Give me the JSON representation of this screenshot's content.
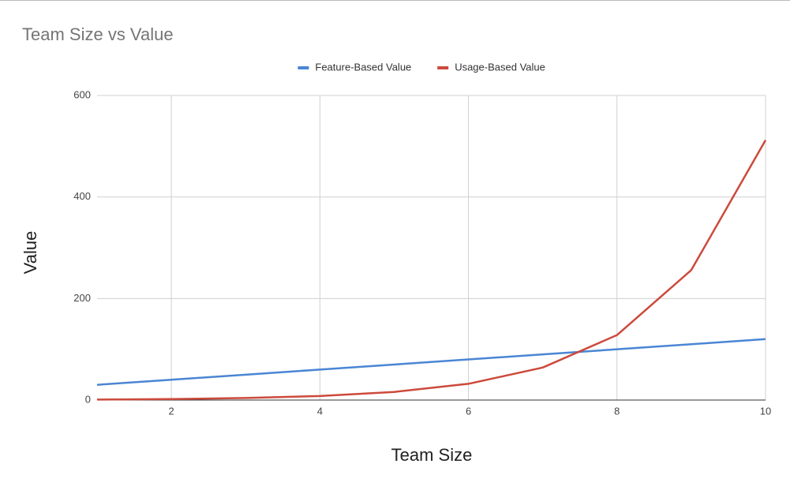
{
  "chart_data": {
    "type": "line",
    "title": "Team Size vs Value",
    "x_label": "Team Size",
    "y_label": "Value",
    "x": [
      1,
      2,
      3,
      4,
      5,
      6,
      7,
      8,
      9,
      10
    ],
    "series": [
      {
        "name": "Feature-Based Value",
        "color": "#4a86d4",
        "values": [
          30,
          40,
          50,
          60,
          70,
          80,
          90,
          100,
          110,
          120
        ]
      },
      {
        "name": "Usage-Based Value",
        "color": "#cc4a3c",
        "values": [
          1,
          2,
          4,
          8,
          16,
          32,
          64,
          128,
          256,
          512
        ]
      }
    ],
    "xlim": [
      1,
      10
    ],
    "xticks": [
      2,
      4,
      6,
      8,
      10
    ],
    "ylim": [
      0,
      600
    ],
    "yticks": [
      0,
      200,
      400,
      600
    ],
    "grid": true,
    "legend": "top"
  }
}
